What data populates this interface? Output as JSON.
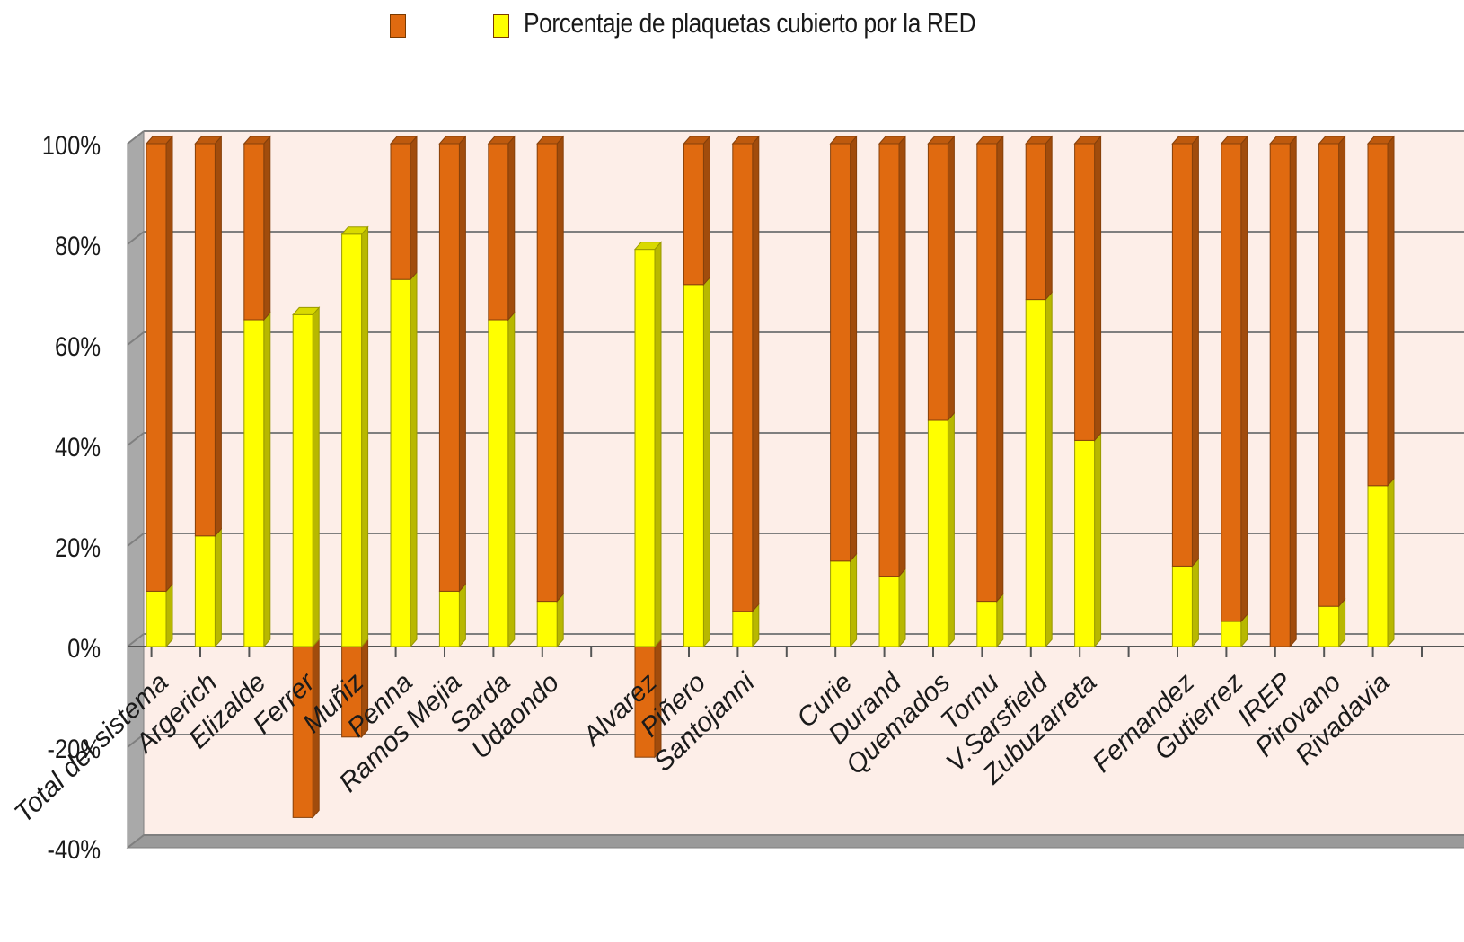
{
  "legend": [
    {
      "label": "",
      "color": "#E06A10"
    },
    {
      "label": "Porcentaje de plaquetas cubierto por la RED",
      "color": "#FFFF00"
    }
  ],
  "chart_data": {
    "type": "bar",
    "stacked": true,
    "three_d": true,
    "yticks": [
      "100%",
      "80%",
      "60%",
      "40%",
      "20%",
      "0%",
      "-20%",
      "-40%"
    ],
    "ylim": [
      -40,
      100
    ],
    "categories": [
      "Total del sistema",
      "Argerich",
      "Elizalde",
      "Ferrer",
      "Muñiz",
      "Penna",
      "Ramos Mejia",
      "Sarda",
      "Udaondo",
      "",
      "Alvarez",
      "Piñero",
      "Santojanni",
      "",
      "Curie",
      "Durand",
      "Quemados",
      "Tornu",
      "V.Sarsfield",
      "Zubuzarreta",
      "",
      "Fernandez",
      "Gutierrez",
      "IREP",
      "Pirovano",
      "Rivadavia"
    ],
    "series": [
      {
        "name": "",
        "color": "#E06A10",
        "values": [
          89,
          78,
          35,
          -34,
          -18,
          27,
          89,
          35,
          91,
          null,
          -22,
          28,
          93,
          null,
          83,
          86,
          55,
          91,
          31,
          59,
          null,
          84,
          95,
          100,
          92,
          68
        ]
      },
      {
        "name": "Porcentaje de plaquetas cubierto por la RED",
        "color": "#FFFF00",
        "values": [
          11,
          22,
          65,
          66,
          82,
          73,
          11,
          65,
          9,
          null,
          79,
          72,
          7,
          null,
          17,
          14,
          45,
          9,
          69,
          41,
          null,
          16,
          5,
          0,
          8,
          32
        ]
      }
    ],
    "grid": true,
    "wall_color": "#FDEEE8"
  }
}
